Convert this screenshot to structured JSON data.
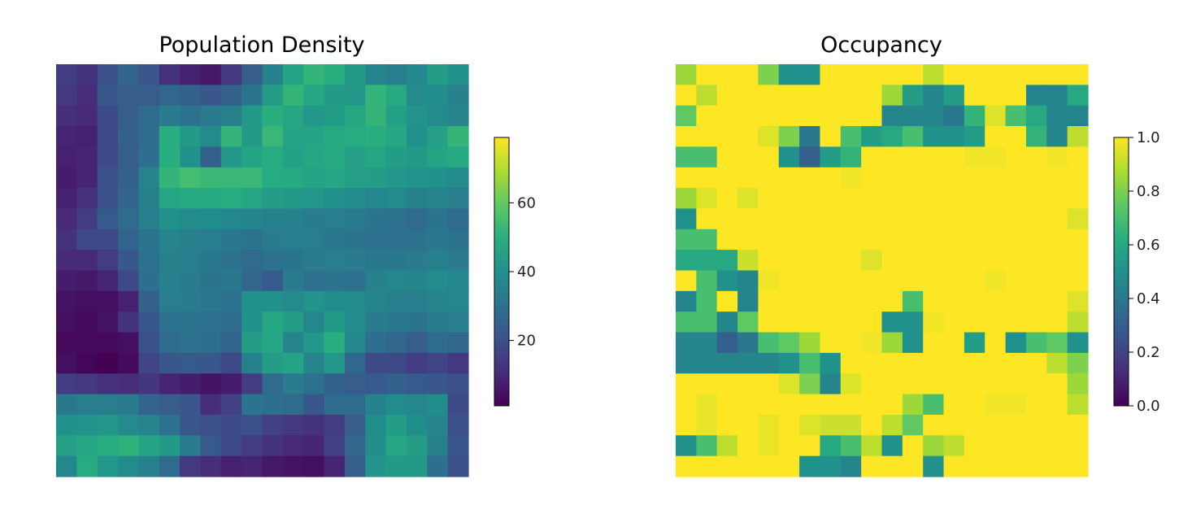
{
  "chart_data": [
    {
      "type": "heatmap",
      "title": "Population Density",
      "xlabel": "",
      "ylabel": "",
      "colormap": "viridis",
      "axes_visible": false,
      "rows": 20,
      "cols": 20,
      "colorbar": {
        "min": 1,
        "max": 79,
        "ticks": [
          20,
          40,
          60
        ]
      },
      "values": [
        [
          15,
          12,
          20,
          26,
          22,
          12,
          8,
          6,
          14,
          24,
          35,
          46,
          52,
          50,
          43,
          36,
          34,
          37,
          44,
          40
        ],
        [
          14,
          11,
          22,
          24,
          24,
          27,
          25,
          22,
          25,
          31,
          44,
          52,
          47,
          43,
          42,
          52,
          48,
          38,
          39,
          35
        ],
        [
          11,
          10,
          19,
          24,
          28,
          33,
          30,
          33,
          35,
          43,
          50,
          47,
          42,
          44,
          47,
          52,
          45,
          41,
          38,
          36
        ],
        [
          9,
          8,
          18,
          25,
          28,
          50,
          43,
          38,
          52,
          43,
          53,
          46,
          46,
          48,
          49,
          50,
          47,
          40,
          45,
          52
        ],
        [
          8,
          9,
          18,
          24,
          29,
          50,
          40,
          25,
          42,
          46,
          49,
          45,
          47,
          48,
          45,
          47,
          44,
          43,
          46,
          48
        ],
        [
          7,
          9,
          20,
          25,
          36,
          52,
          55,
          53,
          53,
          53,
          49,
          48,
          46,
          47,
          45,
          44,
          42,
          41,
          40,
          38
        ],
        [
          8,
          12,
          20,
          26,
          35,
          47,
          48,
          48,
          49,
          47,
          44,
          43,
          42,
          40,
          38,
          37,
          38,
          35,
          36,
          34
        ],
        [
          10,
          15,
          23,
          28,
          34,
          40,
          38,
          39,
          37,
          36,
          35,
          35,
          33,
          34,
          33,
          31,
          30,
          28,
          31,
          28
        ],
        [
          12,
          18,
          18,
          26,
          31,
          36,
          35,
          34,
          32,
          31,
          33,
          34,
          34,
          32,
          31,
          30,
          30,
          30,
          32,
          30
        ],
        [
          10,
          10,
          15,
          22,
          30,
          35,
          34,
          32,
          30,
          28,
          30,
          31,
          33,
          34,
          33,
          32,
          32,
          33,
          35,
          33
        ],
        [
          7,
          6,
          9,
          18,
          29,
          35,
          33,
          31,
          32,
          27,
          23,
          33,
          30,
          31,
          30,
          35,
          37,
          36,
          38,
          37
        ],
        [
          5,
          4,
          4,
          8,
          25,
          34,
          33,
          32,
          30,
          40,
          40,
          38,
          41,
          39,
          38,
          36,
          35,
          34,
          36,
          37
        ],
        [
          4,
          3,
          5,
          12,
          22,
          30,
          31,
          30,
          28,
          40,
          47,
          44,
          37,
          43,
          38,
          33,
          32,
          31,
          33,
          34
        ],
        [
          3,
          3,
          3,
          4,
          20,
          28,
          30,
          29,
          26,
          44,
          47,
          36,
          42,
          50,
          37,
          29,
          27,
          24,
          28,
          27
        ],
        [
          4,
          2,
          1,
          3,
          17,
          22,
          23,
          22,
          18,
          35,
          44,
          46,
          36,
          42,
          27,
          18,
          18,
          15,
          17,
          14
        ],
        [
          15,
          14,
          12,
          11,
          13,
          9,
          7,
          5,
          7,
          15,
          28,
          33,
          30,
          25,
          24,
          23,
          25,
          23,
          22,
          20
        ],
        [
          32,
          34,
          34,
          33,
          26,
          24,
          22,
          11,
          16,
          31,
          29,
          28,
          22,
          28,
          28,
          35,
          38,
          37,
          39,
          19
        ],
        [
          40,
          41,
          42,
          38,
          36,
          30,
          22,
          20,
          19,
          20,
          16,
          14,
          12,
          15,
          24,
          39,
          44,
          39,
          36,
          20
        ],
        [
          45,
          47,
          49,
          51,
          46,
          43,
          33,
          23,
          18,
          15,
          12,
          10,
          9,
          16,
          27,
          39,
          47,
          44,
          35,
          22
        ],
        [
          37,
          49,
          42,
          38,
          35,
          28,
          14,
          11,
          8,
          9,
          6,
          5,
          4,
          9,
          24,
          41,
          43,
          43,
          29,
          20
        ]
      ]
    },
    {
      "type": "heatmap",
      "title": "Occupancy",
      "xlabel": "",
      "ylabel": "",
      "colormap": "viridis",
      "axes_visible": false,
      "rows": 20,
      "cols": 20,
      "colorbar": {
        "min": 0.0,
        "max": 1.0,
        "ticks": [
          0.0,
          0.2,
          0.4,
          0.6,
          0.8,
          1.0
        ]
      },
      "values": [
        [
          0.85,
          1,
          1,
          1,
          0.8,
          0.5,
          0.5,
          1,
          1,
          1,
          1,
          1,
          0.9,
          1,
          1,
          1,
          1,
          1,
          1,
          1
        ],
        [
          1,
          0.9,
          1,
          1,
          1,
          1,
          1,
          1,
          1,
          1,
          0.85,
          0.55,
          0.45,
          0.55,
          1,
          1,
          1,
          0.45,
          0.45,
          0.6
        ],
        [
          0.75,
          1,
          1,
          1,
          1,
          1,
          1,
          1,
          1,
          1,
          0.45,
          0.45,
          0.45,
          0.4,
          0.65,
          0.95,
          0.7,
          0.6,
          0.45,
          0.45
        ],
        [
          1,
          1,
          1,
          1,
          0.95,
          0.8,
          0.4,
          1,
          0.7,
          0.55,
          0.6,
          0.7,
          0.5,
          0.5,
          0.55,
          1,
          1,
          0.65,
          0.45,
          0.9
        ],
        [
          0.7,
          0.7,
          1,
          1,
          1,
          0.5,
          0.3,
          0.55,
          0.65,
          1,
          1,
          1,
          1,
          1,
          0.98,
          0.98,
          1,
          1,
          0.98,
          1
        ],
        [
          1,
          1,
          1,
          1,
          1,
          1,
          1,
          1,
          0.98,
          1,
          1,
          1,
          1,
          1,
          1,
          1,
          1,
          1,
          1,
          1
        ],
        [
          0.85,
          0.95,
          1,
          0.95,
          1,
          1,
          1,
          1,
          1,
          1,
          1,
          1,
          1,
          1,
          1,
          1,
          1,
          1,
          1,
          1
        ],
        [
          0.5,
          1,
          1,
          1,
          1,
          1,
          1,
          1,
          1,
          1,
          1,
          1,
          1,
          1,
          1,
          1,
          1,
          1,
          1,
          0.95
        ],
        [
          0.7,
          0.7,
          1,
          1,
          1,
          1,
          1,
          1,
          1,
          1,
          1,
          1,
          1,
          1,
          1,
          1,
          1,
          1,
          1,
          1
        ],
        [
          0.6,
          0.6,
          0.6,
          0.92,
          1,
          1,
          1,
          1,
          1,
          0.95,
          1,
          1,
          1,
          1,
          1,
          1,
          1,
          1,
          1,
          1
        ],
        [
          1,
          0.7,
          0.5,
          0.45,
          0.98,
          1,
          1,
          1,
          1,
          1,
          1,
          1,
          1,
          1,
          1,
          0.98,
          1,
          1,
          1,
          1
        ],
        [
          0.45,
          0.7,
          1,
          0.45,
          1,
          1,
          1,
          1,
          1,
          1,
          1,
          0.7,
          1,
          1,
          1,
          1,
          1,
          1,
          1,
          0.95
        ],
        [
          0.7,
          0.7,
          0.45,
          0.75,
          1,
          1,
          1,
          1,
          1,
          1,
          0.5,
          0.5,
          0.98,
          1,
          1,
          1,
          1,
          1,
          1,
          0.9
        ],
        [
          0.45,
          0.45,
          0.3,
          0.4,
          0.7,
          0.75,
          0.85,
          1,
          1,
          0.98,
          0.85,
          0.5,
          1,
          1,
          0.55,
          1,
          0.5,
          0.7,
          0.75,
          0.5
        ],
        [
          0.45,
          0.45,
          0.45,
          0.45,
          0.45,
          0.5,
          0.7,
          0.5,
          1,
          1,
          1,
          1,
          1,
          1,
          1,
          1,
          1,
          1,
          0.9,
          0.8
        ],
        [
          1,
          1,
          1,
          1,
          1,
          0.95,
          0.8,
          0.45,
          0.95,
          1,
          1,
          1,
          1,
          1,
          1,
          1,
          1,
          1,
          1,
          0.85
        ],
        [
          1,
          0.97,
          1,
          1,
          1,
          1,
          1,
          1,
          1,
          1,
          1,
          0.85,
          0.7,
          1,
          1,
          0.98,
          0.98,
          1,
          1,
          0.9
        ],
        [
          1,
          0.97,
          1,
          1,
          0.97,
          1,
          0.95,
          0.92,
          0.92,
          1,
          0.9,
          0.75,
          1,
          1,
          1,
          1,
          1,
          1,
          1,
          1
        ],
        [
          0.5,
          0.7,
          0.9,
          1,
          0.97,
          1,
          1,
          0.6,
          0.7,
          0.9,
          0.5,
          1,
          0.85,
          0.9,
          1,
          1,
          1,
          1,
          1,
          1
        ],
        [
          1,
          1,
          1,
          1,
          1,
          1,
          0.5,
          0.5,
          0.45,
          1,
          1,
          1,
          0.5,
          1,
          1,
          1,
          1,
          1,
          1,
          1
        ]
      ]
    }
  ]
}
